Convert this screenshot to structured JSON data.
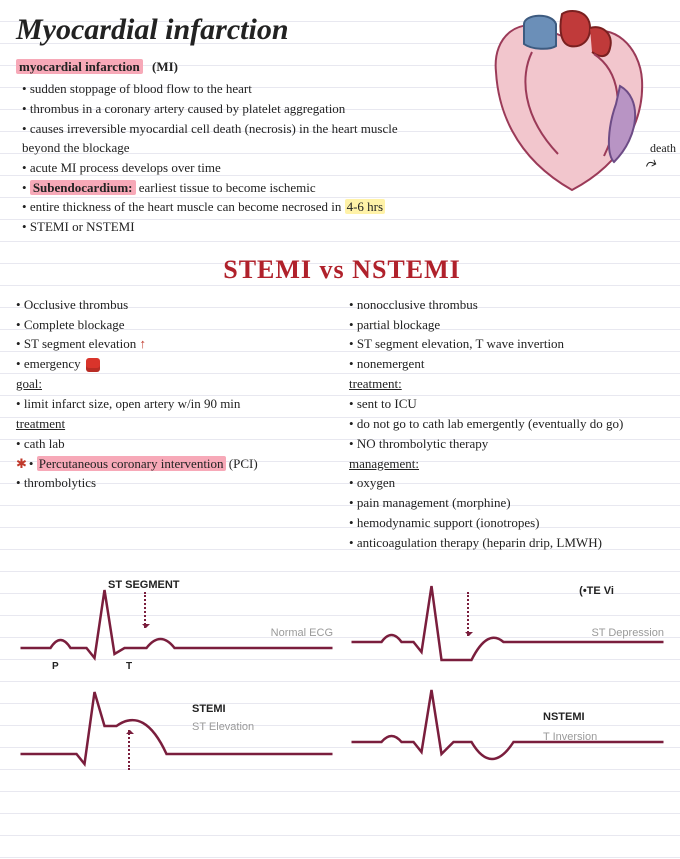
{
  "title": "Myocardial infarction",
  "subheading": {
    "hl": "myocardial infarction",
    "abbr": "(MI)"
  },
  "intro_bullets": [
    {
      "plain": "sudden stoppage of blood flow to the heart"
    },
    {
      "plain": "thrombus in a coronary artery caused by platelet aggregation"
    },
    {
      "plain": "causes irreversible myocardial cell death (necrosis) in the heart muscle beyond the blockage"
    },
    {
      "plain": "acute MI process develops over time"
    },
    {
      "pre": "",
      "hl": "Subendocardium:",
      "post": " earliest tissue to become ischemic",
      "hlclass": "hl-pink"
    },
    {
      "pre": "entire thickness of the heart muscle can become necrosed in ",
      "hl": "4-6 hrs",
      "post": "",
      "hlclass": "hl-yellow"
    },
    {
      "plain": "STEMI or NSTEMI"
    }
  ],
  "heart_label": "death",
  "compare_title": "STEMI vs NSTEMI",
  "stemi": [
    {
      "t": "Occlusive thrombus"
    },
    {
      "t": "Complete blockage"
    },
    {
      "t": "ST segment elevation",
      "trail_arrow": " ↑"
    },
    {
      "t": "emergency ",
      "siren": true
    },
    {
      "t": "goal:",
      "nobul": true,
      "under": true
    },
    {
      "t": "limit infarct size, open artery w/in 90 min"
    },
    {
      "t": "treatment",
      "nobul": true,
      "under": true
    },
    {
      "t": "cath lab"
    },
    {
      "t": "Percutaneous coronary intervention",
      "post": " (PCI)",
      "star": true,
      "coral": true
    },
    {
      "t": "thrombolytics"
    }
  ],
  "nstemi": [
    {
      "t": "nonocclusive thrombus"
    },
    {
      "t": "partial blockage"
    },
    {
      "t": "ST segment elevation, T wave invertion"
    },
    {
      "t": "nonemergent"
    },
    {
      "t": "treatment:",
      "nobul": true,
      "under": true
    },
    {
      "t": "sent to ICU"
    },
    {
      "t": "do not go to cath lab emergently (eventually do go)"
    },
    {
      "t": "NO thrombolytic therapy"
    },
    {
      "t": "management:",
      "nobul": true,
      "under": true
    },
    {
      "t": "oxygen"
    },
    {
      "t": "pain management (morphine)"
    },
    {
      "t": "hemodynamic support (ionotropes)"
    },
    {
      "t": "anticoagulation therapy (heparin drip, LMWH)"
    }
  ],
  "ecg": {
    "top_left": {
      "bold": "ST SEGMENT",
      "gray": "Normal ECG",
      "p": "P",
      "tlab": "T"
    },
    "bot_left": {
      "bold": "STEMI",
      "gray": "ST Elevation"
    },
    "top_right": {
      "bold": "(•TE Vi",
      "gray": "ST Depression"
    },
    "bot_right": {
      "bold": "NSTEMI",
      "gray": "T Inversion"
    }
  },
  "colors": {
    "ecg_stroke": "#7a1e3d",
    "title_red": "#b0212b",
    "pink_hl": "#f7a9b8"
  }
}
